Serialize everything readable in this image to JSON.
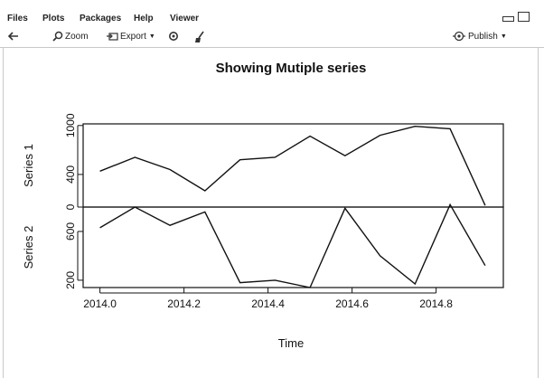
{
  "tabs": [
    "Files",
    "Plots",
    "Packages",
    "Help",
    "Viewer"
  ],
  "toolbar": {
    "zoom_label": "Zoom",
    "export_label": "Export",
    "publish_label": "Publish"
  },
  "icons": {
    "back": "arrow-left-icon",
    "zoom": "magnifier-icon",
    "export": "export-icon",
    "remove": "remove-plot-icon",
    "clear": "broom-icon",
    "publish": "publish-icon",
    "minimize": "minimize-icon",
    "maximize": "maximize-icon"
  },
  "chart_data": {
    "type": "line",
    "title": "Showing Mutiple series",
    "xlabel": "Time",
    "x_ticks": [
      "2014.0",
      "2014.2",
      "2014.4",
      "2014.6",
      "2014.8"
    ],
    "xlim": [
      2013.96,
      2014.96
    ],
    "x": [
      2014.0,
      2014.0833,
      2014.1667,
      2014.25,
      2014.3333,
      2014.4167,
      2014.5,
      2014.5833,
      2014.6667,
      2014.75,
      2014.8333,
      2014.9167
    ],
    "panels": [
      {
        "ylabel": "Series 1",
        "ylim": [
          0,
          1020
        ],
        "y_ticks": [
          "0",
          "400",
          "1000"
        ],
        "values": [
          440,
          610,
          460,
          200,
          580,
          610,
          870,
          630,
          880,
          990,
          960,
          20
        ]
      },
      {
        "ylabel": "Series 2",
        "ylim": [
          140,
          800
        ],
        "y_ticks": [
          "200",
          "600"
        ],
        "values": [
          630,
          800,
          650,
          760,
          180,
          200,
          140,
          790,
          400,
          170,
          820,
          320
        ]
      }
    ]
  }
}
